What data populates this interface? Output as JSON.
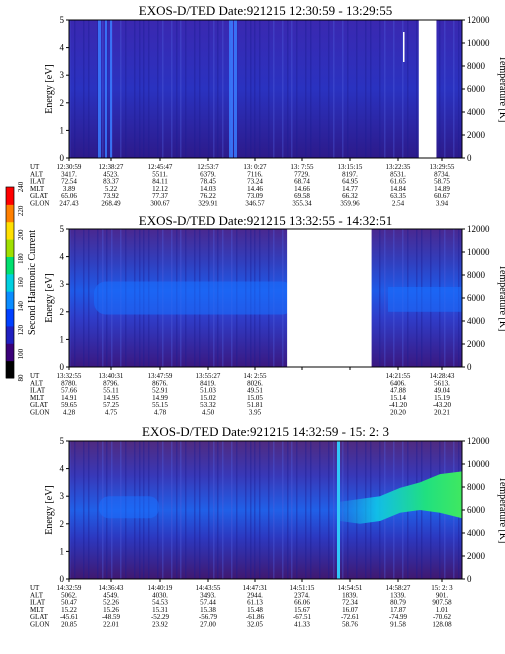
{
  "colorbar": {
    "label": "Second Harmonic Current",
    "ticks": [
      "80",
      "100",
      "120",
      "140",
      "160",
      "180",
      "200",
      "220",
      "240"
    ],
    "colors": [
      "#000000",
      "#3a0078",
      "#2020c0",
      "#0040ff",
      "#0a8cff",
      "#00d0e0",
      "#00e070",
      "#a0e000",
      "#ffe000",
      "#ff8000",
      "#ff0000"
    ]
  },
  "chart_data": [
    {
      "type": "heatmap",
      "title": "EXOS-D/TED   Date:921215   12:30:59 - 13:29:55",
      "ylabel": "Energy [eV]",
      "ylabel_right": "Temperature [K]",
      "ylim": [
        0,
        5
      ],
      "ylim_right": [
        0,
        12000
      ],
      "yticks": [
        "0",
        "1",
        "2",
        "3",
        "4",
        "5"
      ],
      "yticks_right": [
        "0",
        "2000",
        "4000",
        "6000",
        "8000",
        "10000",
        "12000"
      ],
      "data_gaps": [
        [
          0.89,
          0.935
        ]
      ],
      "table": {
        "row_labels": [
          "UT",
          "ALT",
          "ILAT",
          "MLT",
          "GLAT",
          "GLON"
        ],
        "columns": [
          [
            "12:30:59",
            "3417.",
            "72.54",
            "3.89",
            "65.06",
            "247.43"
          ],
          [
            "12:38:27",
            "4523.",
            "83.37",
            "5.22",
            "73.92",
            "268.49"
          ],
          [
            "12:45:47",
            "5511.",
            "84.11",
            "12.12",
            "77.37",
            "300.67"
          ],
          [
            "12:53:7",
            "6379.",
            "78.45",
            "14.03",
            "76.22",
            "329.91"
          ],
          [
            "13: 0:27",
            "7116.",
            "73.24",
            "14.46",
            "73.09",
            "346.57"
          ],
          [
            "13: 7:55",
            "7729.",
            "68.74",
            "14.66",
            "69.58",
            "355.34"
          ],
          [
            "13:15:15",
            "8197.",
            "64.95",
            "14.77",
            "66.32",
            "359.96"
          ],
          [
            "13:22:35",
            "8531.",
            "61.65",
            "14.84",
            "63.35",
            "2.54"
          ],
          [
            "13:29:55",
            "8734.",
            "58.75",
            "14.89",
            "60.67",
            "3.94"
          ]
        ]
      }
    },
    {
      "type": "heatmap",
      "title": "EXOS-D/TED   Date:921215   13:32:55 - 14:32:51",
      "ylabel": "Energy [eV]",
      "ylabel_right": "Temperature [K]",
      "ylim": [
        0,
        5
      ],
      "ylim_right": [
        0,
        12000
      ],
      "yticks": [
        "0",
        "1",
        "2",
        "3",
        "4",
        "5"
      ],
      "yticks_right": [
        "0",
        "2000",
        "4000",
        "6000",
        "8000",
        "10000",
        "12000"
      ],
      "data_gaps": [
        [
          0.555,
          0.77
        ]
      ],
      "table": {
        "row_labels": [
          "UT",
          "ALT",
          "ILAT",
          "MLT",
          "GLAT",
          "GLON"
        ],
        "columns": [
          [
            "13:32:55",
            "8780.",
            "57.66",
            "14.91",
            "59.65",
            "4.28"
          ],
          [
            "13:40:31",
            "8796.",
            "55.11",
            "14.95",
            "57.25",
            "4.75"
          ],
          [
            "13:47:59",
            "8676.",
            "52.91",
            "14.99",
            "55.15",
            "4.78"
          ],
          [
            "13:55:27",
            "8419.",
            "51.03",
            "15.02",
            "53.32",
            "4.50"
          ],
          [
            "14: 2:55",
            "8026.",
            "49.51",
            "15.05",
            "51.81",
            "3.95"
          ],
          [
            "",
            "",
            "",
            "",
            "",
            ""
          ],
          [
            "",
            "",
            "",
            "",
            "",
            ""
          ],
          [
            "14:21:55",
            "6406.",
            "47.88",
            "15.14",
            "-41.20",
            "20.20"
          ],
          [
            "14:28:43",
            "5613.",
            "49.04",
            "15.19",
            "-43.20",
            "20.21"
          ]
        ]
      }
    },
    {
      "type": "heatmap",
      "title": "EXOS-D/TED   Date:921215   14:32:59 - 15: 2: 3",
      "ylabel": "Energy [eV]",
      "ylabel_right": "Temperature [K]",
      "ylim": [
        0,
        5
      ],
      "ylim_right": [
        0,
        12000
      ],
      "yticks": [
        "0",
        "1",
        "2",
        "3",
        "4",
        "5"
      ],
      "yticks_right": [
        "0",
        "2000",
        "4000",
        "6000",
        "8000",
        "10000",
        "12000"
      ],
      "data_gaps": [],
      "table": {
        "row_labels": [
          "UT",
          "ALT",
          "ILAT",
          "MLT",
          "GLAT",
          "GLON"
        ],
        "columns": [
          [
            "14:32:59",
            "5062.",
            "50.47",
            "15.22",
            "-45.61",
            "20.85"
          ],
          [
            "14:36:43",
            "4549.",
            "52.26",
            "15.26",
            "-48.59",
            "22.01"
          ],
          [
            "14:40:19",
            "4030.",
            "54.53",
            "15.31",
            "-52.29",
            "23.92"
          ],
          [
            "14:43:55",
            "3493.",
            "57.44",
            "15.38",
            "-56.79",
            "27.00"
          ],
          [
            "14:47:31",
            "2944.",
            "61.13",
            "15.48",
            "-61.86",
            "32.05"
          ],
          [
            "14:51:15",
            "2374.",
            "66.06",
            "15.67",
            "-67.51",
            "41.33"
          ],
          [
            "14:54:51",
            "1839.",
            "72.34",
            "16.07",
            "-72.61",
            "58.76"
          ],
          [
            "14:58:27",
            "1339.",
            "80.79",
            "17.87",
            "-74.99",
            "91.58"
          ],
          [
            "15: 2: 3",
            "901.",
            "907.58",
            "1.01",
            "-70.62",
            "128.08"
          ]
        ]
      }
    }
  ]
}
